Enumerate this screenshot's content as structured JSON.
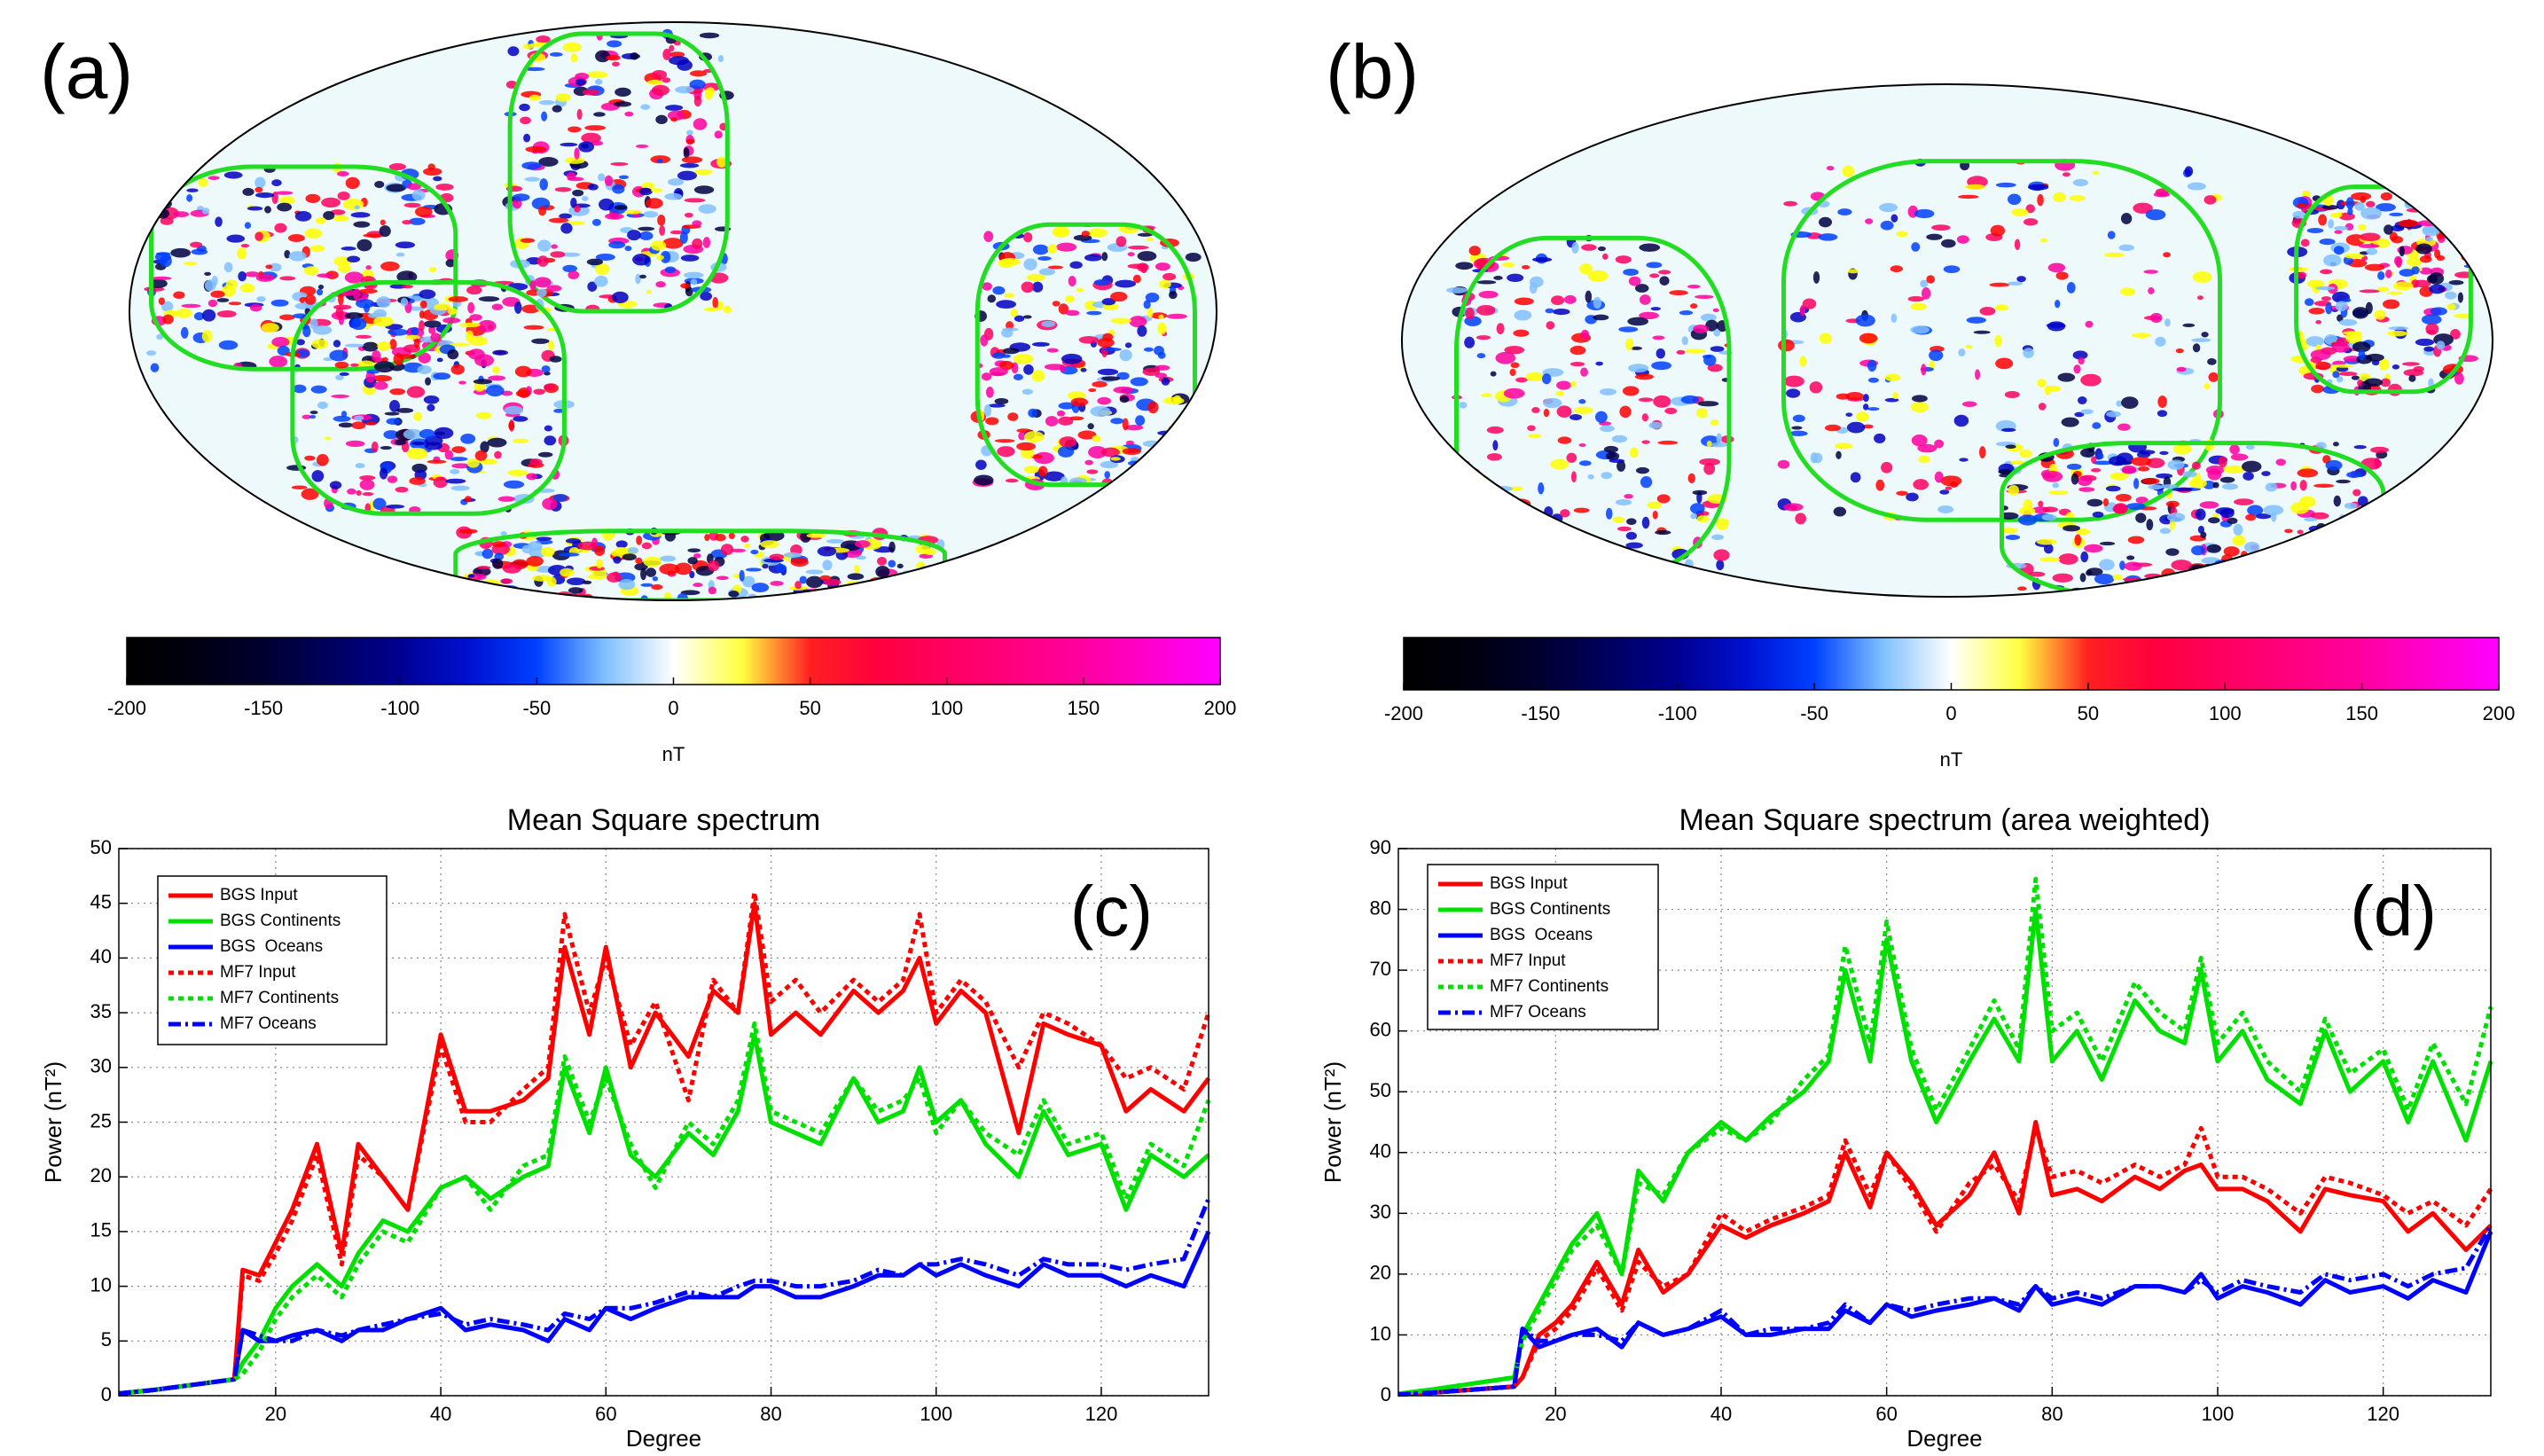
{
  "chart_data": [
    {
      "type": "map",
      "panel_label": "(a)",
      "colorbar": {
        "xlim": [
          -200,
          200
        ],
        "xticks": [
          -200,
          -150,
          -100,
          -50,
          0,
          50,
          100,
          150,
          200
        ],
        "label": "nT",
        "colors": [
          "#000000",
          "#000010",
          "#000030",
          "#000060",
          "#000090",
          "#0010d0",
          "#0040ff",
          "#80c0ff",
          "#ffffff",
          "#ffff40",
          "#ff2020",
          "#ff0040",
          "#ff0060",
          "#ff0080",
          "#ff00a0",
          "#ff00d0",
          "#ff00ff"
        ]
      }
    },
    {
      "type": "map",
      "panel_label": "(b)",
      "colorbar": {
        "xlim": [
          -200,
          200
        ],
        "xticks": [
          -200,
          -150,
          -100,
          -50,
          0,
          50,
          100,
          150,
          200
        ],
        "label": "nT",
        "colors": [
          "#000000",
          "#000010",
          "#000030",
          "#000060",
          "#000090",
          "#0010d0",
          "#0040ff",
          "#80c0ff",
          "#ffffff",
          "#ffff40",
          "#ff2020",
          "#ff0040",
          "#ff0060",
          "#ff0080",
          "#ff00a0",
          "#ff00d0",
          "#ff00ff"
        ]
      }
    },
    {
      "type": "line",
      "title": "Mean Square spectrum",
      "panel_label": "(c)",
      "xlabel": "Degree",
      "ylabel": "Power (nT²)",
      "xlim": [
        1,
        133
      ],
      "xticks": [
        20,
        40,
        60,
        80,
        100,
        120
      ],
      "ylim": [
        0,
        50
      ],
      "yticks": [
        0,
        5,
        10,
        15,
        20,
        25,
        30,
        35,
        40,
        45,
        50
      ],
      "grid": true,
      "x": [
        1,
        5,
        10,
        15,
        16,
        18,
        20,
        22,
        25,
        28,
        30,
        33,
        36,
        40,
        43,
        46,
        50,
        53,
        55,
        58,
        60,
        63,
        66,
        70,
        73,
        76,
        78,
        80,
        83,
        86,
        90,
        93,
        96,
        98,
        100,
        103,
        106,
        110,
        113,
        116,
        120,
        123,
        126,
        130,
        133
      ],
      "series": [
        {
          "name": "BGS Input",
          "color": "#ff0000",
          "style": "solid",
          "values": [
            0.2,
            0.5,
            1,
            1.5,
            11.5,
            11,
            14,
            17,
            23,
            13,
            23,
            20,
            17,
            33,
            26,
            26,
            27,
            29,
            41,
            33,
            41,
            30,
            35,
            31,
            37,
            35,
            45,
            33,
            35,
            33,
            37,
            35,
            37,
            40,
            34,
            37,
            35,
            24,
            34,
            33,
            32,
            26,
            28,
            26,
            29
          ]
        },
        {
          "name": "BGS Continents",
          "color": "#00e000",
          "style": "solid",
          "values": [
            0.2,
            0.5,
            1,
            1.5,
            3,
            5,
            8,
            10,
            12,
            10,
            13,
            16,
            15,
            19,
            20,
            18,
            20,
            21,
            30,
            24,
            30,
            22,
            20,
            24,
            22,
            26,
            33,
            25,
            24,
            23,
            29,
            25,
            26,
            30,
            25,
            27,
            23,
            20,
            26,
            22,
            23,
            17,
            22,
            20,
            22
          ]
        },
        {
          "name": "BGS  Oceans",
          "color": "#0000ff",
          "style": "solid",
          "values": [
            0.2,
            0.5,
            1,
            1.5,
            6,
            5,
            5,
            5.5,
            6,
            5,
            6,
            6,
            7,
            8,
            6,
            6.5,
            6,
            5,
            7,
            6,
            8,
            7,
            8,
            9,
            9,
            9,
            10,
            10,
            9,
            9,
            10,
            11,
            11,
            12,
            11,
            12,
            11,
            10,
            12,
            11,
            11,
            10,
            11,
            10,
            15
          ]
        },
        {
          "name": "MF7 Input",
          "color": "#ff0000",
          "style": "dotted",
          "values": [
            0.2,
            0.5,
            1,
            1.5,
            11,
            10.5,
            13,
            16,
            22,
            12,
            22,
            20,
            17,
            32,
            25,
            25,
            28,
            30,
            44,
            35,
            40,
            32,
            36,
            27,
            38,
            35,
            46,
            36,
            38,
            35,
            38,
            36,
            38,
            44,
            35,
            38,
            36,
            30,
            35,
            34,
            32,
            29,
            30,
            28,
            35
          ]
        },
        {
          "name": "MF7 Continents",
          "color": "#00e000",
          "style": "dotted",
          "values": [
            0.2,
            0.5,
            1,
            1.5,
            2,
            4,
            7,
            9,
            11,
            9,
            12,
            15,
            14,
            19,
            20,
            17,
            21,
            22,
            31,
            25,
            29,
            23,
            19,
            25,
            23,
            27,
            34,
            26,
            25,
            24,
            29,
            26,
            27,
            29,
            24,
            27,
            24,
            22,
            27,
            23,
            24,
            18,
            23,
            21,
            27
          ]
        },
        {
          "name": "MF7 Oceans",
          "color": "#0000ff",
          "style": "dashdot",
          "values": [
            0.2,
            0.5,
            1,
            1.5,
            6,
            5.5,
            5,
            5,
            6,
            5.5,
            6,
            6.5,
            7,
            7.5,
            6.5,
            7,
            6.5,
            6,
            7.5,
            7,
            8,
            8,
            8.5,
            9.5,
            9,
            10,
            10.5,
            10.5,
            10,
            10,
            10.5,
            11.5,
            11,
            12,
            12,
            12.5,
            12,
            11,
            12.5,
            12,
            12,
            11.5,
            12,
            12.5,
            18
          ]
        }
      ]
    },
    {
      "type": "line",
      "title": "Mean Square spectrum (area weighted)",
      "panel_label": "(d)",
      "xlabel": "Degree",
      "ylabel": "Power (nT²)",
      "xlim": [
        1,
        133
      ],
      "xticks": [
        20,
        40,
        60,
        80,
        100,
        120
      ],
      "ylim": [
        0,
        90
      ],
      "yticks": [
        0,
        10,
        20,
        30,
        40,
        50,
        60,
        70,
        80,
        90
      ],
      "grid": true,
      "x": [
        1,
        5,
        10,
        15,
        16,
        18,
        20,
        22,
        25,
        28,
        30,
        33,
        36,
        40,
        43,
        46,
        50,
        53,
        55,
        58,
        60,
        63,
        66,
        70,
        73,
        76,
        78,
        80,
        83,
        86,
        90,
        93,
        96,
        98,
        100,
        103,
        106,
        110,
        113,
        116,
        120,
        123,
        126,
        130,
        133
      ],
      "series": [
        {
          "name": "BGS Input",
          "color": "#ff0000",
          "style": "solid",
          "values": [
            0.2,
            0.5,
            1,
            1.5,
            3,
            10,
            12,
            15,
            22,
            15,
            24,
            17,
            20,
            28,
            26,
            28,
            30,
            32,
            40,
            31,
            40,
            35,
            28,
            33,
            40,
            30,
            45,
            33,
            34,
            32,
            36,
            34,
            37,
            38,
            34,
            34,
            32,
            27,
            34,
            33,
            32,
            27,
            30,
            24,
            28
          ]
        },
        {
          "name": "BGS Continents",
          "color": "#00e000",
          "style": "solid",
          "values": [
            0.3,
            1,
            2,
            3,
            10,
            15,
            20,
            25,
            30,
            20,
            37,
            32,
            40,
            45,
            42,
            46,
            50,
            55,
            70,
            55,
            75,
            55,
            45,
            55,
            62,
            55,
            80,
            55,
            60,
            52,
            65,
            60,
            58,
            70,
            55,
            60,
            52,
            48,
            60,
            50,
            55,
            45,
            55,
            42,
            55
          ]
        },
        {
          "name": "BGS  Oceans",
          "color": "#0000ff",
          "style": "solid",
          "values": [
            0.2,
            0.5,
            1,
            1.5,
            11,
            8,
            9,
            10,
            11,
            8,
            12,
            10,
            11,
            13,
            10,
            10,
            11,
            11,
            14,
            12,
            15,
            13,
            14,
            15,
            16,
            14,
            18,
            15,
            16,
            15,
            18,
            18,
            17,
            20,
            16,
            18,
            17,
            15,
            19,
            17,
            18,
            16,
            19,
            17,
            27
          ]
        },
        {
          "name": "MF7 Input",
          "color": "#ff0000",
          "style": "dotted",
          "values": [
            0.2,
            0.5,
            1,
            1.5,
            3,
            9,
            11,
            14,
            21,
            14,
            22,
            18,
            20,
            30,
            27,
            29,
            31,
            33,
            42,
            33,
            40,
            34,
            27,
            35,
            38,
            32,
            44,
            36,
            37,
            35,
            38,
            36,
            38,
            44,
            36,
            36,
            34,
            30,
            36,
            35,
            33,
            30,
            32,
            28,
            34
          ]
        },
        {
          "name": "MF7 Continents",
          "color": "#00e000",
          "style": "dotted",
          "values": [
            0.3,
            1,
            2,
            3,
            9,
            14,
            19,
            24,
            28,
            20,
            35,
            33,
            40,
            44,
            42,
            45,
            52,
            56,
            74,
            58,
            78,
            57,
            47,
            57,
            65,
            57,
            85,
            60,
            63,
            55,
            68,
            63,
            60,
            72,
            58,
            63,
            55,
            50,
            62,
            53,
            57,
            47,
            58,
            48,
            64
          ]
        },
        {
          "name": "MF7 Oceans",
          "color": "#0000ff",
          "style": "dashdot",
          "values": [
            0.2,
            0.5,
            1,
            1.5,
            11,
            9,
            9,
            10,
            10,
            9,
            12,
            10,
            11,
            14,
            10,
            11,
            11,
            12,
            15,
            12,
            15,
            14,
            15,
            16,
            16,
            15,
            18,
            16,
            17,
            16,
            18,
            18,
            17,
            19,
            17,
            19,
            18,
            17,
            20,
            19,
            20,
            18,
            20,
            21,
            28
          ]
        }
      ]
    }
  ]
}
